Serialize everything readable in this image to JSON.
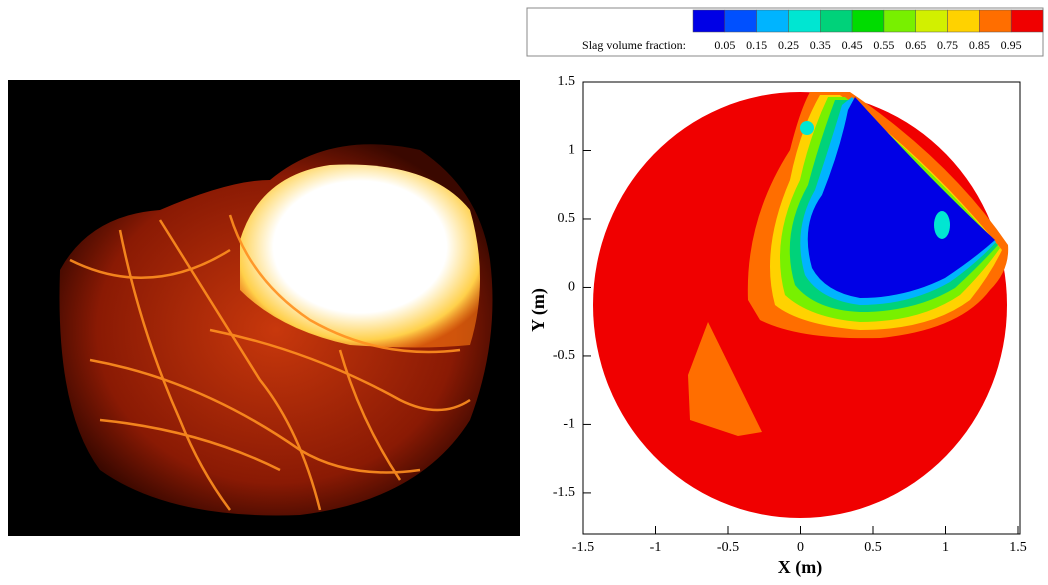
{
  "chart_data": {
    "type": "contour",
    "xlabel": "X (m)",
    "ylabel": "Y (m)",
    "xlim": [
      -1.5,
      1.5
    ],
    "ylim": [
      -1.8,
      1.5
    ],
    "xticks": [
      -1.5,
      -1,
      -0.5,
      0,
      0.5,
      1,
      1.5
    ],
    "yticks": [
      -1.5,
      -1,
      -0.5,
      0,
      0.5,
      1,
      1.5
    ],
    "colorbar": {
      "label": "Slag volume fraction:",
      "levels": [
        0.05,
        0.15,
        0.25,
        0.35,
        0.45,
        0.55,
        0.65,
        0.75,
        0.85,
        0.95
      ],
      "colors": [
        "#0000e6",
        "#0050ff",
        "#00b4ff",
        "#00e6d2",
        "#00d27a",
        "#00dc00",
        "#78f000",
        "#d2f000",
        "#ffd200",
        "#ff6e00",
        "#f00000"
      ]
    }
  }
}
